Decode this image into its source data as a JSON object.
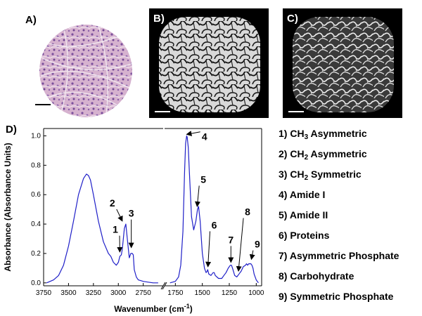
{
  "panels": [
    {
      "label": "A)",
      "type": "H&E stained tissue"
    },
    {
      "label": "B)",
      "type": "grayscale infrared image"
    },
    {
      "label": "C)",
      "type": "grayscale infrared image"
    }
  ],
  "colors": {
    "line": "#1f1fc8",
    "axis": "#000000",
    "he_pink": "#d9b4cf",
    "he_purple": "#8a5fa8"
  },
  "chart_data": {
    "type": "line",
    "panel_label": "D)",
    "xlabel": "Wavenumber (cm",
    "xlabel_sup": "-1",
    "xlabel_end": ")",
    "ylabel": "Absorbance (Absorbance Units)",
    "x_reversed": true,
    "broken_axis": true,
    "segments": [
      [
        3750,
        2550
      ],
      [
        1850,
        950
      ]
    ],
    "ylim": [
      -0.02,
      1.05
    ],
    "y_ticks": [
      "0.0",
      "0.2",
      "0.4",
      "0.6",
      "0.8",
      "1.0"
    ],
    "y_tick_values": [
      0.0,
      0.2,
      0.4,
      0.6,
      0.8,
      1.0
    ],
    "x_ticks": [
      "3750",
      "3500",
      "3250",
      "3000",
      "2750",
      "1750",
      "1500",
      "1250",
      "1000"
    ],
    "x_tick_values": [
      3750,
      3500,
      3250,
      3000,
      2750,
      1750,
      1500,
      1250,
      1000
    ],
    "series": [
      {
        "segment": 0,
        "x": [
          3720,
          3650,
          3600,
          3550,
          3500,
          3450,
          3400,
          3350,
          3320,
          3300,
          3280,
          3250,
          3200,
          3150,
          3100,
          3075,
          3050,
          3020,
          3000,
          2985,
          2970,
          2960,
          2940,
          2925,
          2910,
          2890,
          2875,
          2860,
          2850,
          2840,
          2820,
          2800,
          2750,
          2700,
          2650,
          2600
        ],
        "y": [
          0.0,
          0.02,
          0.05,
          0.12,
          0.25,
          0.42,
          0.6,
          0.71,
          0.74,
          0.73,
          0.7,
          0.6,
          0.42,
          0.28,
          0.2,
          0.18,
          0.14,
          0.12,
          0.14,
          0.18,
          0.19,
          0.23,
          0.37,
          0.4,
          0.3,
          0.17,
          0.2,
          0.2,
          0.19,
          0.09,
          0.04,
          0.02,
          0.01,
          0.005,
          0.0,
          0.0
        ]
      },
      {
        "segment": 1,
        "x": [
          1800,
          1750,
          1720,
          1700,
          1680,
          1665,
          1655,
          1645,
          1640,
          1630,
          1620,
          1600,
          1580,
          1560,
          1545,
          1535,
          1520,
          1500,
          1480,
          1465,
          1455,
          1450,
          1440,
          1420,
          1400,
          1390,
          1380,
          1350,
          1320,
          1300,
          1280,
          1260,
          1240,
          1230,
          1220,
          1200,
          1180,
          1170,
          1160,
          1150,
          1140,
          1120,
          1100,
          1090,
          1080,
          1070,
          1050,
          1040,
          1030,
          1020,
          1000,
          980
        ],
        "y": [
          0.0,
          0.01,
          0.04,
          0.12,
          0.35,
          0.75,
          0.95,
          1.0,
          0.99,
          0.92,
          0.75,
          0.45,
          0.36,
          0.42,
          0.5,
          0.52,
          0.42,
          0.2,
          0.1,
          0.07,
          0.08,
          0.09,
          0.06,
          0.05,
          0.07,
          0.07,
          0.05,
          0.03,
          0.03,
          0.05,
          0.07,
          0.1,
          0.12,
          0.12,
          0.1,
          0.05,
          0.04,
          0.05,
          0.06,
          0.07,
          0.08,
          0.11,
          0.12,
          0.13,
          0.12,
          0.13,
          0.13,
          0.12,
          0.1,
          0.06,
          0.02,
          0.0
        ]
      }
    ],
    "annotations": [
      {
        "text": "1",
        "x": 3030,
        "y": 0.34,
        "arrow_x": 2985,
        "arrow_y": 0.21
      },
      {
        "text": "2",
        "x": 3060,
        "y": 0.52,
        "arrow_x": 2960,
        "arrow_y": 0.42
      },
      {
        "text": "3",
        "x": 2870,
        "y": 0.45,
        "arrow_x": 2870,
        "arrow_y": 0.24
      },
      {
        "text": "4",
        "x": 1480,
        "y": 0.97,
        "arrow_x": 1645,
        "arrow_y": 1.01
      },
      {
        "text": "5",
        "x": 1490,
        "y": 0.68,
        "arrow_x": 1548,
        "arrow_y": 0.52
      },
      {
        "text": "6",
        "x": 1390,
        "y": 0.37,
        "arrow_x": 1448,
        "arrow_y": 0.11
      },
      {
        "text": "7",
        "x": 1235,
        "y": 0.27,
        "arrow_x": 1235,
        "arrow_y": 0.14
      },
      {
        "text": "8",
        "x": 1080,
        "y": 0.46,
        "arrow_x": 1165,
        "arrow_y": 0.08
      },
      {
        "text": "9",
        "x": 990,
        "y": 0.24,
        "arrow_x": 1045,
        "arrow_y": 0.16
      }
    ]
  },
  "legend": [
    {
      "number": "1)",
      "text": "CH",
      "sub": "3",
      "rest": " Asymmetric"
    },
    {
      "number": "2)",
      "text": "CH",
      "sub": "2",
      "rest": " Asymmetric"
    },
    {
      "number": "3)",
      "text": "CH",
      "sub": "2",
      "rest": " Symmetric"
    },
    {
      "number": "4)",
      "text": "Amide I",
      "sub": "",
      "rest": ""
    },
    {
      "number": "5)",
      "text": "Amide II",
      "sub": "",
      "rest": ""
    },
    {
      "number": "6)",
      "text": "Proteins",
      "sub": "",
      "rest": ""
    },
    {
      "number": "7)",
      "text": "Asymmetric Phosphate",
      "sub": "",
      "rest": ""
    },
    {
      "number": "8)",
      "text": "Carbohydrate",
      "sub": "",
      "rest": ""
    },
    {
      "number": "9)",
      "text": "Symmetric Phosphate",
      "sub": "",
      "rest": ""
    }
  ]
}
